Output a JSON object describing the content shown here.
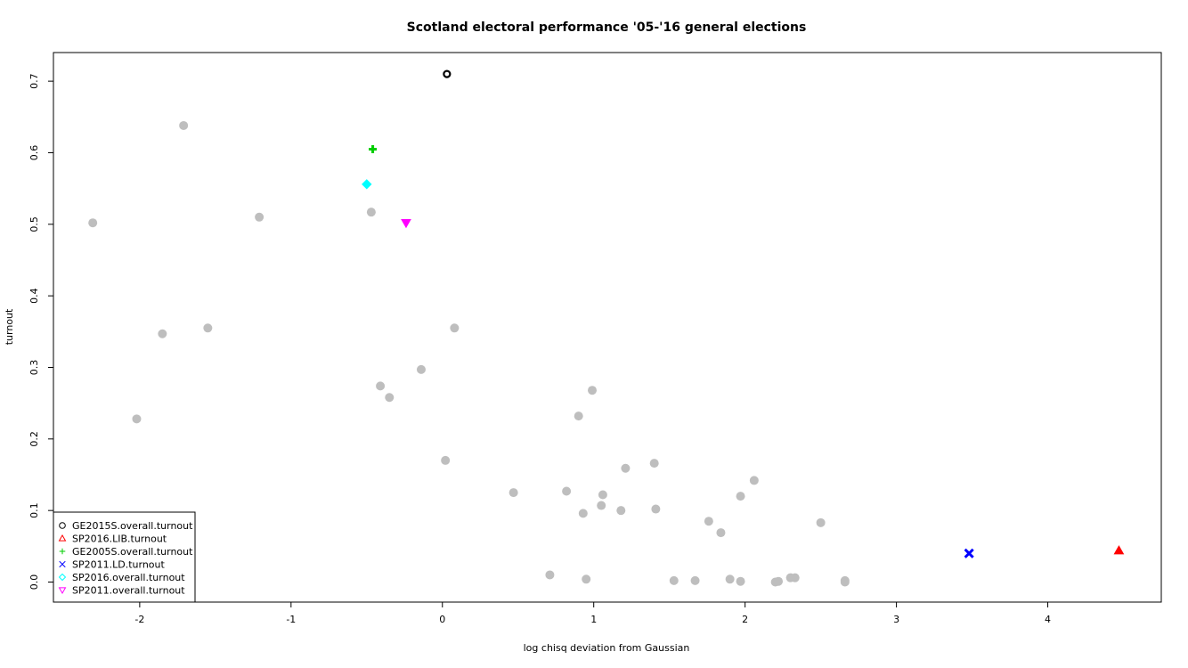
{
  "chart_data": {
    "type": "scatter",
    "title": "Scotland electoral performance '05-'16 general elections",
    "xlabel": "log chisq deviation from Gaussian",
    "ylabel": "turnout",
    "xlim": [
      -2.57,
      4.75
    ],
    "ylim": [
      -0.028,
      0.74
    ],
    "x_ticks": [
      -2,
      -1,
      0,
      1,
      2,
      3,
      4
    ],
    "y_ticks": [
      0.0,
      0.1,
      0.2,
      0.3,
      0.4,
      0.5,
      0.6,
      0.7
    ],
    "x_tick_labels": [
      "-2",
      "-1",
      "0",
      "1",
      "2",
      "3",
      "4"
    ],
    "y_tick_labels": [
      "0.0",
      "0.1",
      "0.2",
      "0.3",
      "0.4",
      "0.5",
      "0.6",
      "0.7"
    ],
    "grid": false,
    "legend_position": "bottom-left",
    "background_series": {
      "color": "#bebebe",
      "points": [
        [
          -2.31,
          0.502
        ],
        [
          -1.71,
          0.638
        ],
        [
          -1.21,
          0.51
        ],
        [
          -1.85,
          0.347
        ],
        [
          -1.55,
          0.355
        ],
        [
          -2.02,
          0.228
        ],
        [
          -0.47,
          0.517
        ],
        [
          0.08,
          0.355
        ],
        [
          -0.14,
          0.297
        ],
        [
          -0.41,
          0.274
        ],
        [
          -0.35,
          0.258
        ],
        [
          0.99,
          0.268
        ],
        [
          0.9,
          0.232
        ],
        [
          0.02,
          0.17
        ],
        [
          0.47,
          0.125
        ],
        [
          0.82,
          0.127
        ],
        [
          0.93,
          0.096
        ],
        [
          1.05,
          0.107
        ],
        [
          1.06,
          0.122
        ],
        [
          1.21,
          0.159
        ],
        [
          1.18,
          0.1
        ],
        [
          1.4,
          0.166
        ],
        [
          1.41,
          0.102
        ],
        [
          1.76,
          0.085
        ],
        [
          1.84,
          0.069
        ],
        [
          1.97,
          0.12
        ],
        [
          2.06,
          0.142
        ],
        [
          2.5,
          0.083
        ],
        [
          0.71,
          0.01
        ],
        [
          0.95,
          0.004
        ],
        [
          1.53,
          0.002
        ],
        [
          1.67,
          0.002
        ],
        [
          1.9,
          0.004
        ],
        [
          1.97,
          0.001
        ],
        [
          2.2,
          0.0
        ],
        [
          2.22,
          0.001
        ],
        [
          2.3,
          0.006
        ],
        [
          2.33,
          0.006
        ],
        [
          2.66,
          0.002
        ],
        [
          2.66,
          0.0
        ]
      ]
    },
    "series": [
      {
        "name": "GE2015S.overall.turnout",
        "color": "#000000",
        "symbol": "circle",
        "x": [
          0.03
        ],
        "y": [
          0.71
        ]
      },
      {
        "name": "SP2016.LIB.turnout",
        "color": "#ff0000",
        "symbol": "triangle-up",
        "x": [
          4.47
        ],
        "y": [
          0.044
        ]
      },
      {
        "name": "GE2005S.overall.turnout",
        "color": "#00cd00",
        "symbol": "plus",
        "x": [
          -0.46
        ],
        "y": [
          0.605
        ]
      },
      {
        "name": "SP2011.LD.turnout",
        "color": "#0000ff",
        "symbol": "cross",
        "x": [
          3.48
        ],
        "y": [
          0.04
        ]
      },
      {
        "name": "SP2016.overall.turnout",
        "color": "#00ffff",
        "symbol": "diamond",
        "x": [
          -0.5
        ],
        "y": [
          0.556
        ]
      },
      {
        "name": "SP2011.overall.turnout",
        "color": "#ff00ff",
        "symbol": "triangle-down",
        "x": [
          -0.24
        ],
        "y": [
          0.502
        ]
      }
    ]
  }
}
